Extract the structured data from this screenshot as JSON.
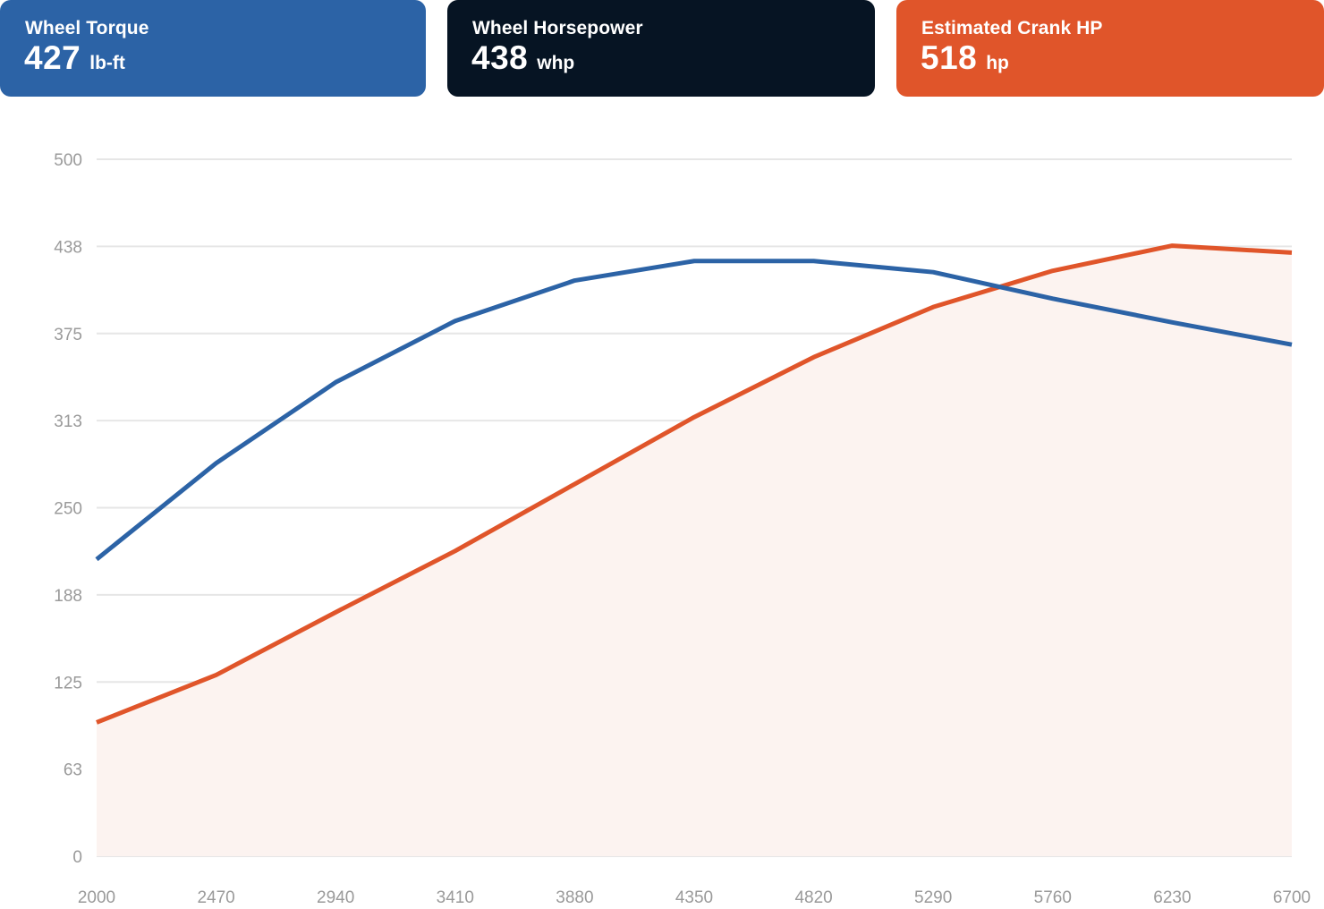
{
  "cards": [
    {
      "label": "Wheel Torque",
      "value": "427",
      "unit": "lb-ft",
      "color": "#2C63A6"
    },
    {
      "label": "Wheel Horsepower",
      "value": "438",
      "unit": "whp",
      "color": "#061423"
    },
    {
      "label": "Estimated Crank HP",
      "value": "518",
      "unit": "hp",
      "color": "#E0552A"
    }
  ],
  "chart_data": {
    "type": "line",
    "x": [
      2000,
      2470,
      2940,
      3410,
      3880,
      4350,
      4820,
      5290,
      5760,
      6230,
      6700
    ],
    "x_tick_labels": [
      "2000",
      "2470",
      "2940",
      "3410",
      "3880",
      "4350",
      "4820",
      "5290",
      "5760",
      "6230",
      "6700"
    ],
    "y_tick_values": [
      0,
      62.5,
      125,
      187.5,
      250,
      312.5,
      375,
      437.5,
      500
    ],
    "y_tick_labels": [
      "0",
      "63",
      "125",
      "188",
      "250",
      "313",
      "375",
      "438",
      "500"
    ],
    "ylim": [
      0,
      500
    ],
    "xlim": [
      2000,
      6700
    ],
    "grid": true,
    "title": "",
    "xlabel": "",
    "ylabel": "",
    "series": [
      {
        "key": "torque",
        "color": "#2C63A6",
        "fill": false,
        "values": [
          213,
          282,
          340,
          384,
          413,
          427,
          427,
          419,
          400,
          383,
          367
        ]
      },
      {
        "key": "horsepower",
        "color": "#E0552A",
        "fill": true,
        "fill_color": "#FCF3F0",
        "values": [
          96,
          130,
          175,
          219,
          267,
          315,
          358,
          394,
          420,
          438,
          433
        ]
      }
    ]
  }
}
